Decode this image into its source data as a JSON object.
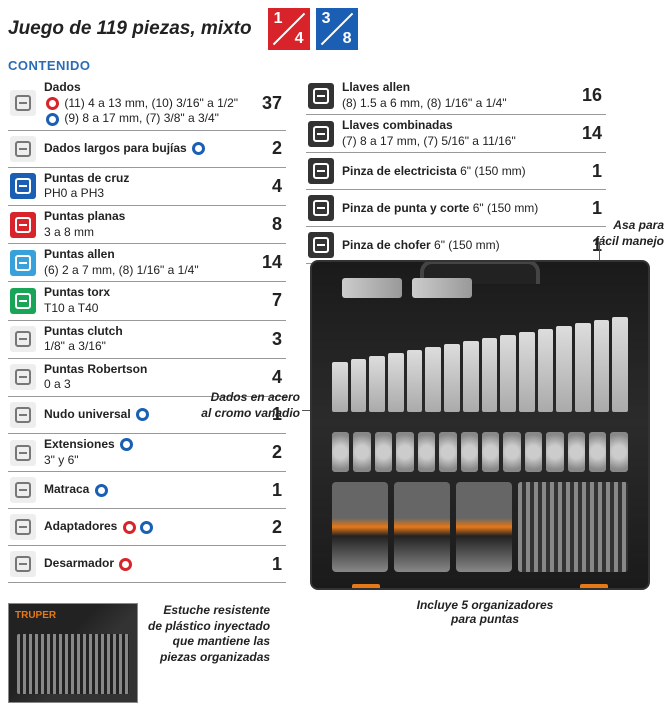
{
  "header": {
    "title": "Juego de 119 piezas, mixto",
    "fractions": [
      {
        "num": "1",
        "den": "4",
        "color": "#d8232a"
      },
      {
        "num": "3",
        "den": "8",
        "color": "#1a5fb4"
      }
    ]
  },
  "section_title": "CONTENIDO",
  "colors": {
    "blue_accent": "#2a6cb5",
    "red": "#d8232a",
    "blue": "#1a5fb4",
    "orange": "#e67817"
  },
  "left_rows": [
    {
      "icon_bg": "#eee",
      "name": "socket-icon",
      "title": "Dados",
      "detail_html": "<span class='circ circ-red'></span> (11) 4 a 13 mm, (10) 3/16\" a 1/2\"<br><span class='circ circ-blue'></span> (9) 8 a 17 mm, (7) 3/8\" a 3/4\"",
      "count": "37",
      "tall": true
    },
    {
      "icon_bg": "#eee",
      "name": "spark-socket-icon",
      "title": "Dados largos para bujías ",
      "trailing_circle": "blue",
      "detail": "",
      "count": "2"
    },
    {
      "icon_bg": "#1a5fb4",
      "name": "phillips-icon",
      "title": "Puntas de cruz",
      "detail": "PH0 a PH3",
      "count": "4"
    },
    {
      "icon_bg": "#d8232a",
      "name": "flat-icon",
      "title": "Puntas planas",
      "detail": "3 a 8 mm",
      "count": "8"
    },
    {
      "icon_bg": "#38a1db",
      "name": "allen-bit-icon",
      "title": "Puntas allen",
      "detail": "(6) 2 a 7 mm, (8) 1/16\" a 1/4\"",
      "count": "14"
    },
    {
      "icon_bg": "#18a558",
      "name": "torx-icon",
      "title": "Puntas torx",
      "detail": "T10 a T40",
      "count": "7"
    },
    {
      "icon_bg": "#eee",
      "name": "clutch-icon",
      "title": "Puntas clutch",
      "detail": "1/8\" a 3/16\"",
      "count": "3"
    },
    {
      "icon_bg": "#eee",
      "name": "robertson-icon",
      "title": "Puntas Robertson",
      "detail": "0 a 3",
      "count": "4"
    },
    {
      "icon_bg": "#eee",
      "name": "universal-joint-icon",
      "title": "Nudo universal ",
      "trailing_circle": "blue",
      "detail": "",
      "count": "1"
    },
    {
      "icon_bg": "#eee",
      "name": "extension-icon",
      "title": "Extensiones ",
      "trailing_circle": "blue",
      "detail": "3\" y 6\"",
      "count": "2"
    },
    {
      "icon_bg": "#eee",
      "name": "ratchet-icon",
      "title": "Matraca ",
      "trailing_circle": "blue",
      "detail": "",
      "count": "1"
    },
    {
      "icon_bg": "#eee",
      "name": "adapter-icon",
      "title": "Adaptadores ",
      "trailing_circle": "both",
      "detail": "",
      "count": "2"
    },
    {
      "icon_bg": "#eee",
      "name": "screwdriver-icon",
      "title": "Desarmador ",
      "trailing_circle": "red",
      "detail": "",
      "count": "1"
    }
  ],
  "right_rows": [
    {
      "icon_bg": "#333",
      "name": "allen-key-icon",
      "title": "Llaves allen",
      "detail": "(8) 1.5 a 6 mm, (8) 1/16\" a 1/4\"",
      "count": "16"
    },
    {
      "icon_bg": "#333",
      "name": "wrench-icon",
      "title": "Llaves combinadas",
      "detail": "(7) 8 a 17 mm, (7) 5/16\" a 11/16\"",
      "count": "14"
    },
    {
      "icon_bg": "#333",
      "name": "electrician-pliers-icon",
      "title": "Pinza de electricista",
      "detail_inline": " 6\" (150 mm)",
      "count": "1"
    },
    {
      "icon_bg": "#333",
      "name": "cutting-pliers-icon",
      "title": "Pinza de punta y corte",
      "detail_inline": " 6\" (150 mm)",
      "count": "1"
    },
    {
      "icon_bg": "#333",
      "name": "slipjoint-pliers-icon",
      "title": "Pinza de chofer",
      "detail_inline": " 6\" (150 mm)",
      "count": "1"
    }
  ],
  "callouts": {
    "handle": "Asa para\nfácil manejo",
    "steel": "Dados en acero\nal cromo vanadio",
    "bottom_caption": "Incluye 5 organizadores\npara puntas",
    "pack": "Estuche resistente\nde plástico inyectado\nque mantiene las\npiezas organizadas"
  },
  "pack_brand": "TRUPER"
}
